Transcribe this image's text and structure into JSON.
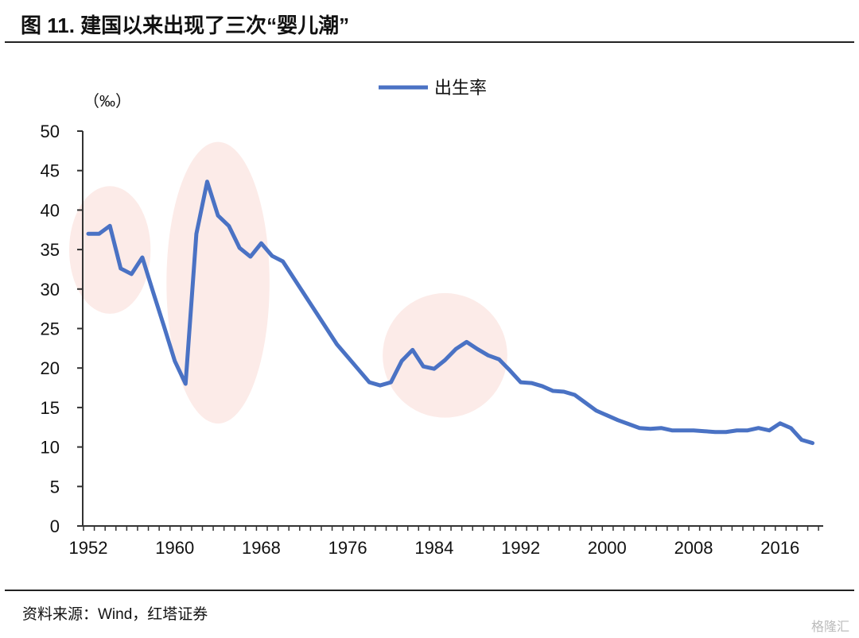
{
  "title": "图 11. 建国以来出现了三次“婴儿潮”",
  "source": "资料来源：Wind，红塔证券",
  "watermark": "格隆汇",
  "chart_data": {
    "type": "line",
    "title": "",
    "xlabel": "",
    "ylabel": "（‰）",
    "xlim": [
      1952,
      2019
    ],
    "ylim": [
      0,
      50
    ],
    "yticks": [
      0,
      5,
      10,
      15,
      20,
      25,
      30,
      35,
      40,
      45,
      50
    ],
    "xticks": [
      1952,
      1960,
      1968,
      1976,
      1984,
      1992,
      2000,
      2008,
      2016
    ],
    "grid": false,
    "legend": "top-center",
    "line_color": "#4a72c4",
    "highlight_color": "#fcebe8",
    "highlights": [
      [
        1952,
        1956
      ],
      [
        1961,
        1967
      ],
      [
        1981,
        1989
      ]
    ],
    "series": [
      {
        "name": "出生率",
        "x": [
          1952,
          1953,
          1954,
          1955,
          1956,
          1957,
          1958,
          1959,
          1960,
          1961,
          1962,
          1963,
          1964,
          1965,
          1966,
          1967,
          1968,
          1969,
          1970,
          1971,
          1972,
          1973,
          1974,
          1975,
          1976,
          1977,
          1978,
          1979,
          1980,
          1981,
          1982,
          1983,
          1984,
          1985,
          1986,
          1987,
          1988,
          1989,
          1990,
          1991,
          1992,
          1993,
          1994,
          1995,
          1996,
          1997,
          1998,
          1999,
          2000,
          2001,
          2002,
          2003,
          2004,
          2005,
          2006,
          2007,
          2008,
          2009,
          2010,
          2011,
          2012,
          2013,
          2014,
          2015,
          2016,
          2017,
          2018,
          2019
        ],
        "values": [
          37.0,
          37.0,
          38.0,
          32.6,
          31.9,
          34.0,
          29.6,
          25.3,
          20.9,
          18.0,
          37.0,
          43.6,
          39.3,
          38.0,
          35.2,
          34.1,
          35.8,
          34.2,
          33.5,
          31.4,
          29.3,
          27.2,
          25.1,
          23.0,
          21.4,
          19.8,
          18.2,
          17.8,
          18.2,
          20.9,
          22.3,
          20.2,
          19.9,
          21.0,
          22.4,
          23.3,
          22.4,
          21.6,
          21.1,
          19.7,
          18.2,
          18.1,
          17.7,
          17.1,
          17.0,
          16.6,
          15.6,
          14.6,
          14.0,
          13.4,
          12.9,
          12.4,
          12.3,
          12.4,
          12.1,
          12.1,
          12.1,
          12.0,
          11.9,
          11.9,
          12.1,
          12.1,
          12.4,
          12.1,
          13.0,
          12.4,
          10.9,
          10.5
        ]
      }
    ]
  }
}
